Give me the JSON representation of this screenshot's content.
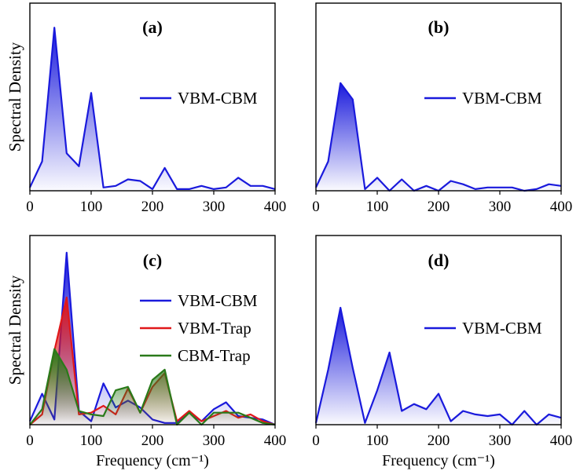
{
  "figure": {
    "ylabel": "Spectral Density",
    "xlabel": "Frequency (cm⁻¹)"
  },
  "colors": {
    "VBM-CBM": "#1a1adc",
    "VBM-Trap": "#e0181a",
    "CBM-Trap": "#2a7a1a"
  },
  "chart_data": [
    {
      "type": "area",
      "label": "(a)",
      "xlabel": "",
      "ylabel": "Spectral Density",
      "xlim": [
        0,
        400
      ],
      "ylim": [
        0,
        1.15
      ],
      "xticks": [
        0,
        100,
        200,
        300,
        400
      ],
      "x": [
        0,
        20,
        40,
        60,
        80,
        100,
        120,
        140,
        160,
        180,
        200,
        220,
        240,
        260,
        280,
        300,
        320,
        340,
        360,
        380,
        400
      ],
      "series": [
        {
          "name": "VBM-CBM",
          "values": [
            0.02,
            0.18,
            1.0,
            0.23,
            0.15,
            0.6,
            0.02,
            0.03,
            0.07,
            0.06,
            0.01,
            0.14,
            0.01,
            0.01,
            0.03,
            0.01,
            0.02,
            0.08,
            0.03,
            0.03,
            0.01
          ]
        }
      ],
      "legend_position": "center-right"
    },
    {
      "type": "area",
      "label": "(b)",
      "xlabel": "",
      "ylabel": "",
      "xlim": [
        0,
        400
      ],
      "ylim": [
        0,
        1.15
      ],
      "xticks": [
        0,
        100,
        200,
        300,
        400
      ],
      "x": [
        0,
        20,
        40,
        60,
        80,
        100,
        120,
        140,
        160,
        180,
        200,
        220,
        240,
        260,
        280,
        300,
        320,
        340,
        360,
        380,
        400
      ],
      "series": [
        {
          "name": "VBM-CBM",
          "values": [
            0.02,
            0.18,
            0.66,
            0.56,
            0.01,
            0.08,
            0.0,
            0.07,
            0.0,
            0.03,
            0.0,
            0.06,
            0.04,
            0.01,
            0.02,
            0.02,
            0.02,
            0.0,
            0.01,
            0.04,
            0.03
          ]
        }
      ],
      "legend_position": "center-right"
    },
    {
      "type": "area",
      "label": "(c)",
      "xlabel": "Frequency (cm⁻¹)",
      "ylabel": "Spectral Density",
      "xlim": [
        0,
        400
      ],
      "ylim": [
        0,
        1.1
      ],
      "xticks": [
        0,
        100,
        200,
        300,
        400
      ],
      "x": [
        0,
        20,
        40,
        60,
        80,
        100,
        120,
        140,
        160,
        180,
        200,
        220,
        240,
        260,
        280,
        300,
        320,
        340,
        360,
        380,
        400
      ],
      "series": [
        {
          "name": "VBM-CBM",
          "values": [
            0.02,
            0.18,
            0.03,
            1.0,
            0.08,
            0.02,
            0.24,
            0.1,
            0.14,
            0.1,
            0.03,
            0.01,
            0.01,
            0.07,
            0.02,
            0.09,
            0.13,
            0.05,
            0.04,
            0.03,
            0.0
          ]
        },
        {
          "name": "VBM-Trap",
          "values": [
            0.0,
            0.06,
            0.43,
            0.74,
            0.06,
            0.07,
            0.11,
            0.06,
            0.21,
            0.07,
            0.22,
            0.3,
            0.02,
            0.08,
            0.02,
            0.05,
            0.08,
            0.04,
            0.06,
            0.02,
            0.0
          ]
        },
        {
          "name": "CBM-Trap",
          "values": [
            0.0,
            0.09,
            0.44,
            0.32,
            0.08,
            0.06,
            0.05,
            0.2,
            0.22,
            0.07,
            0.26,
            0.32,
            0.0,
            0.07,
            0.0,
            0.07,
            0.07,
            0.07,
            0.04,
            0.01,
            0.0
          ]
        }
      ],
      "legend_position": "center-right"
    },
    {
      "type": "area",
      "label": "(d)",
      "xlabel": "Frequency (cm⁻¹)",
      "ylabel": "",
      "xlim": [
        0,
        400
      ],
      "ylim": [
        0,
        1.1
      ],
      "xticks": [
        0,
        100,
        200,
        300,
        400
      ],
      "x": [
        0,
        20,
        40,
        60,
        80,
        100,
        120,
        140,
        160,
        180,
        200,
        220,
        240,
        260,
        280,
        300,
        320,
        340,
        360,
        380,
        400
      ],
      "series": [
        {
          "name": "VBM-CBM",
          "values": [
            0.01,
            0.32,
            0.68,
            0.33,
            0.01,
            0.2,
            0.42,
            0.08,
            0.12,
            0.09,
            0.18,
            0.02,
            0.08,
            0.06,
            0.05,
            0.06,
            0.0,
            0.08,
            0.0,
            0.06,
            0.04
          ]
        }
      ],
      "legend_position": "center-right"
    }
  ]
}
